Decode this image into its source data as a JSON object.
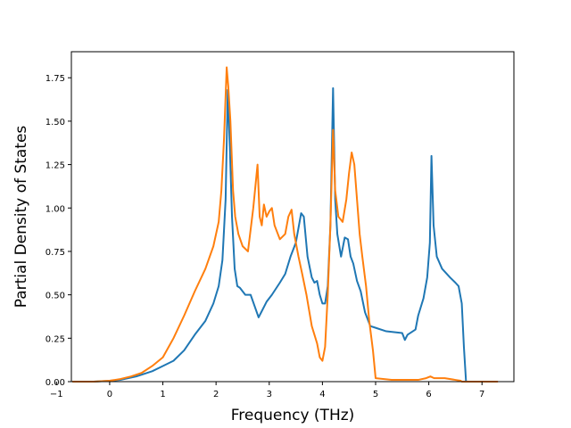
{
  "chart_data": {
    "type": "line",
    "title": "",
    "xlabel": "Frequency (THz)",
    "ylabel": "Partial Density of States",
    "xlim": [
      -0.72,
      7.6
    ],
    "ylim": [
      0,
      1.9
    ],
    "xticks": [
      -1,
      0,
      1,
      2,
      3,
      4,
      5,
      6,
      7
    ],
    "xtick_labels": [
      "−1",
      "0",
      "1",
      "2",
      "3",
      "4",
      "5",
      "6",
      "7"
    ],
    "yticks": [
      0,
      0.25,
      0.5,
      0.75,
      1.0,
      1.25,
      1.5,
      1.75
    ],
    "ytick_labels": [
      "0.00",
      "0.25",
      "0.50",
      "0.75",
      "1.00",
      "1.25",
      "1.50",
      "1.75"
    ],
    "grid": false,
    "legend": "none",
    "series": [
      {
        "color": "#1f77b4",
        "x": [
          -0.7,
          -0.3,
          0,
          0.2,
          0.5,
          0.8,
          1.0,
          1.2,
          1.4,
          1.6,
          1.8,
          1.95,
          2.05,
          2.12,
          2.18,
          2.22,
          2.26,
          2.3,
          2.35,
          2.4,
          2.45,
          2.55,
          2.65,
          2.8,
          2.85,
          2.95,
          3.05,
          3.2,
          3.3,
          3.4,
          3.5,
          3.6,
          3.65,
          3.72,
          3.8,
          3.85,
          3.9,
          3.95,
          4.0,
          4.05,
          4.1,
          4.15,
          4.2,
          4.24,
          4.28,
          4.35,
          4.42,
          4.48,
          4.53,
          4.58,
          4.65,
          4.72,
          4.8,
          4.9,
          5.0,
          5.2,
          5.5,
          5.55,
          5.6,
          5.75,
          5.8,
          5.9,
          5.97,
          6.02,
          6.05,
          6.09,
          6.15,
          6.25,
          6.4,
          6.5,
          6.56,
          6.62,
          6.66,
          6.7,
          7.0
        ],
        "y": [
          0,
          0,
          0.005,
          0.01,
          0.03,
          0.06,
          0.09,
          0.12,
          0.18,
          0.27,
          0.35,
          0.45,
          0.55,
          0.7,
          1.05,
          1.68,
          1.35,
          0.95,
          0.65,
          0.55,
          0.54,
          0.5,
          0.5,
          0.37,
          0.4,
          0.46,
          0.5,
          0.57,
          0.62,
          0.72,
          0.8,
          0.97,
          0.95,
          0.72,
          0.6,
          0.57,
          0.58,
          0.5,
          0.45,
          0.45,
          0.55,
          0.9,
          1.69,
          1.05,
          0.85,
          0.72,
          0.83,
          0.82,
          0.72,
          0.68,
          0.58,
          0.52,
          0.4,
          0.32,
          0.31,
          0.29,
          0.28,
          0.24,
          0.27,
          0.3,
          0.38,
          0.48,
          0.6,
          0.8,
          1.3,
          0.9,
          0.72,
          0.65,
          0.6,
          0.57,
          0.55,
          0.45,
          0.2,
          0,
          0
        ]
      },
      {
        "color": "#ff7f0e",
        "x": [
          -0.7,
          -0.3,
          0,
          0.2,
          0.4,
          0.6,
          0.8,
          1.0,
          1.2,
          1.4,
          1.6,
          1.8,
          1.95,
          2.05,
          2.1,
          2.15,
          2.2,
          2.23,
          2.27,
          2.32,
          2.36,
          2.42,
          2.5,
          2.6,
          2.7,
          2.78,
          2.82,
          2.86,
          2.9,
          2.95,
          3.0,
          3.05,
          3.1,
          3.2,
          3.3,
          3.36,
          3.42,
          3.47,
          3.55,
          3.62,
          3.7,
          3.8,
          3.9,
          3.95,
          4.0,
          4.05,
          4.1,
          4.15,
          4.2,
          4.24,
          4.3,
          4.38,
          4.45,
          4.5,
          4.55,
          4.6,
          4.65,
          4.7,
          4.75,
          4.82,
          4.88,
          4.95,
          5.0,
          5.3,
          5.6,
          5.8,
          5.95,
          6.03,
          6.1,
          6.3,
          6.5,
          6.6,
          6.62,
          7.0,
          7.3
        ],
        "y": [
          0,
          0,
          0.005,
          0.015,
          0.03,
          0.05,
          0.09,
          0.14,
          0.25,
          0.38,
          0.52,
          0.65,
          0.78,
          0.92,
          1.1,
          1.4,
          1.81,
          1.7,
          1.5,
          1.1,
          0.95,
          0.85,
          0.78,
          0.75,
          1.0,
          1.25,
          0.95,
          0.9,
          1.02,
          0.95,
          0.98,
          1.0,
          0.9,
          0.82,
          0.85,
          0.95,
          0.99,
          0.85,
          0.72,
          0.62,
          0.5,
          0.32,
          0.22,
          0.14,
          0.12,
          0.2,
          0.5,
          0.9,
          1.45,
          1.1,
          0.95,
          0.92,
          1.05,
          1.2,
          1.32,
          1.25,
          1.05,
          0.85,
          0.72,
          0.55,
          0.35,
          0.18,
          0.02,
          0.01,
          0.01,
          0.01,
          0.02,
          0.03,
          0.02,
          0.02,
          0.01,
          0.005,
          0,
          0,
          0
        ]
      }
    ]
  }
}
